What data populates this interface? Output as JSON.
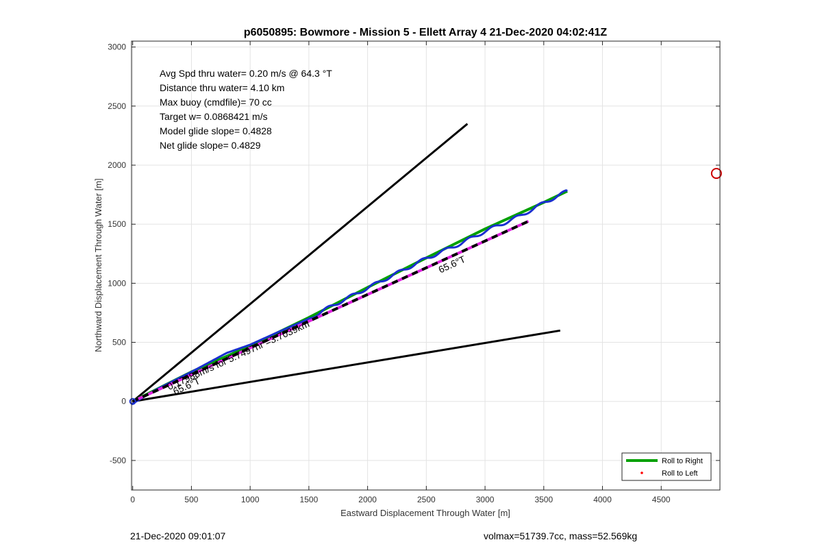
{
  "chart_data": {
    "type": "line",
    "title": "p6050895: Bowmore - Mission 5 - Ellett Array 4 21-Dec-2020 04:02:41Z",
    "xlabel": "Eastward Displacement Through Water [m]",
    "ylabel": "Northward Displacement Through Water [m]",
    "xlim": [
      -10,
      5000
    ],
    "ylim": [
      -750,
      3050
    ],
    "xticks": [
      0,
      500,
      1000,
      1500,
      2000,
      2500,
      3000,
      3500,
      4000,
      4500
    ],
    "yticks": [
      -500,
      0,
      500,
      1000,
      1500,
      2000,
      2500,
      3000
    ],
    "grid": true,
    "info_lines": [
      "Avg Spd thru water=  0.20 m/s @  64.3 °T",
      "Distance thru water=  4.10 km",
      "Max buoy (cmdfile)= 70 cc",
      "Target w= 0.0868421 m/s",
      "Model glide slope= 0.4828",
      "Net glide slope= 0.4829"
    ],
    "annotations": [
      {
        "text": "0.17988m/s for 5.7497hr =3.7039km",
        "x": 310,
        "y": 95,
        "angle_deg": 65.6
      },
      {
        "text": "65.6°T",
        "x": 360,
        "y": 55,
        "angle_deg": 65.6
      },
      {
        "text": "65.6°T",
        "x": 2620,
        "y": 1085,
        "angle_deg": 65.6
      }
    ],
    "series": [
      {
        "name": "Roll to Right",
        "color": "#00a000",
        "style": "solid",
        "x": [
          0,
          500,
          1000,
          1500,
          2000,
          2500,
          3000,
          3500,
          3700
        ],
        "y": [
          0,
          250,
          470,
          710,
          965,
          1215,
          1460,
          1685,
          1780
        ]
      },
      {
        "name": "Roll to Left",
        "color": "#ff0000",
        "style": "dot",
        "x": [],
        "y": []
      },
      {
        "name": "track",
        "color": "#1a2fd0",
        "style": "wavy",
        "x": [
          -10,
          30,
          200,
          500,
          800,
          1000,
          1200,
          1500,
          1700,
          2000,
          2300,
          2500,
          2800,
          3000,
          3300,
          3500,
          3700
        ],
        "y": [
          -25,
          0,
          100,
          250,
          410,
          480,
          570,
          700,
          810,
          960,
          1110,
          1210,
          1340,
          1440,
          1570,
          1680,
          1780
        ]
      },
      {
        "name": "mean-heading",
        "color": "#000000",
        "style": "dashed-magenta",
        "x": [
          0,
          3370
        ],
        "y": [
          0,
          1525
        ]
      },
      {
        "name": "upper-bound",
        "color": "#000000",
        "style": "solid",
        "x": [
          0,
          2850
        ],
        "y": [
          0,
          2350
        ]
      },
      {
        "name": "lower-bound",
        "color": "#000000",
        "style": "solid",
        "x": [
          0,
          3640
        ],
        "y": [
          0,
          600
        ]
      }
    ],
    "start_marker": {
      "x": 0,
      "y": 0
    },
    "target_marker": {
      "x": 4970,
      "y": 1930,
      "color": "#cc0000"
    },
    "legend": {
      "placement": "bottom-right",
      "entries": [
        "Roll to Right",
        "Roll to Left"
      ]
    }
  },
  "footer": {
    "left": "21-Dec-2020 09:01:07",
    "right": "volmax=51739.7cc, mass=52.569kg"
  }
}
